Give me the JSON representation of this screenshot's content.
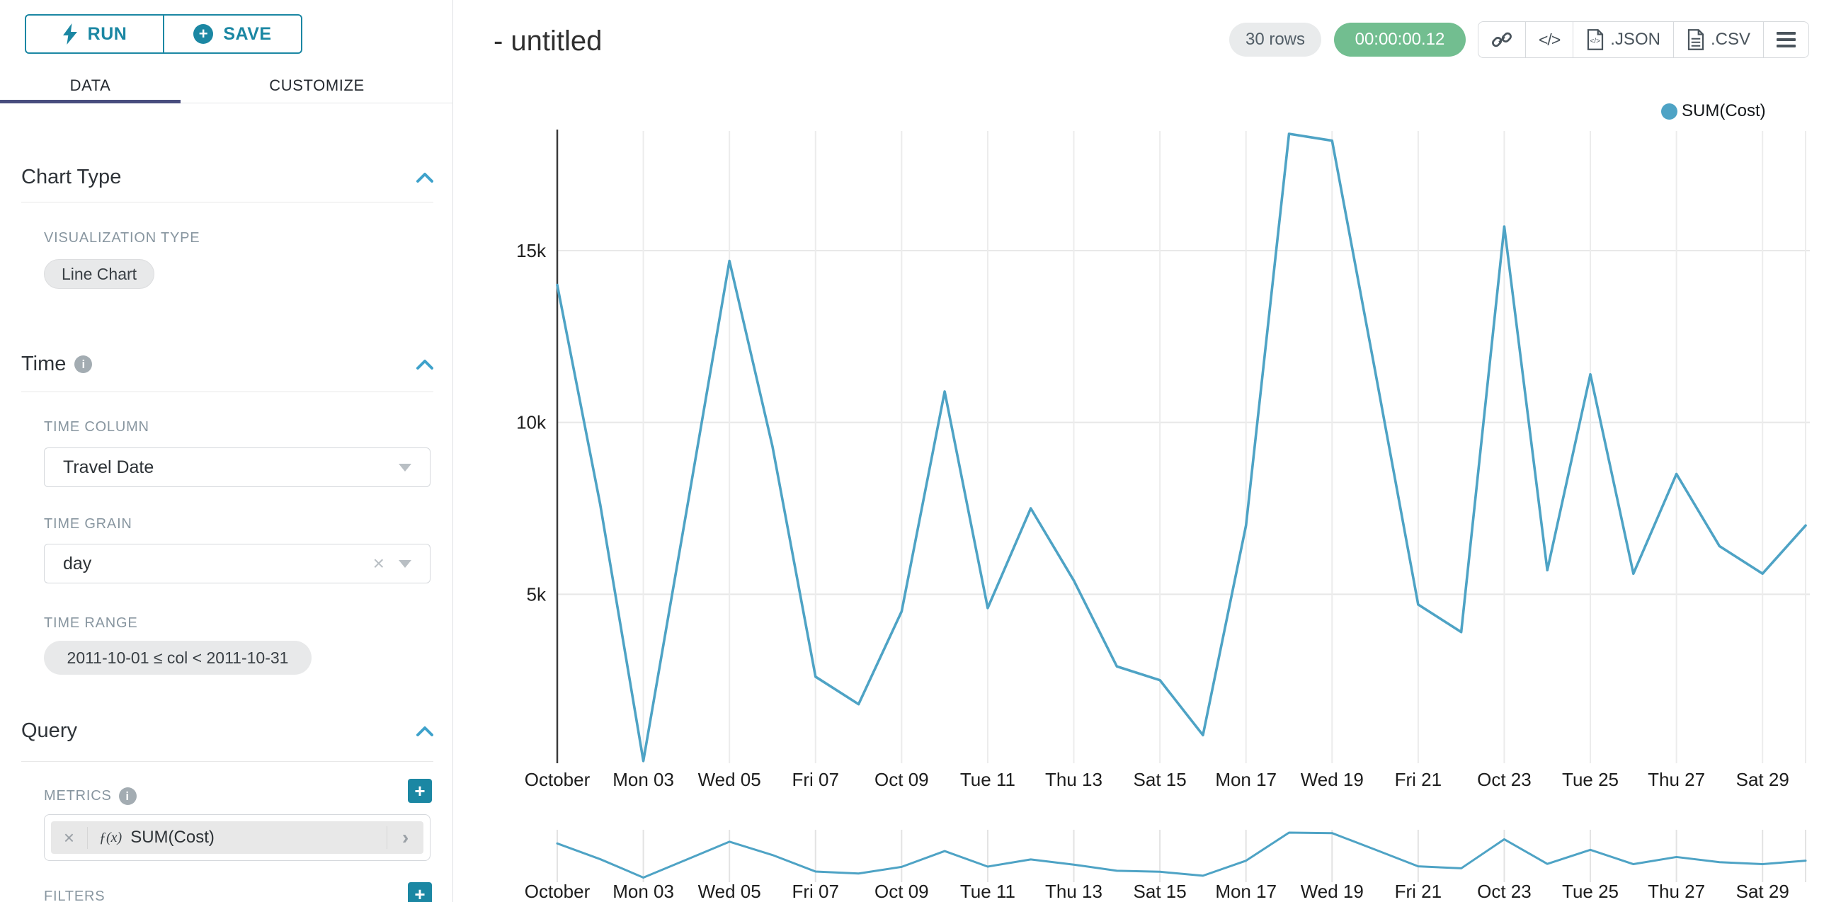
{
  "sidebar": {
    "run_label": "RUN",
    "save_label": "SAVE",
    "tabs": [
      {
        "label": "DATA"
      },
      {
        "label": "CUSTOMIZE"
      }
    ],
    "chart_type_section": {
      "title": "Chart Type",
      "viz_type_label": "VISUALIZATION TYPE",
      "viz_type_value": "Line Chart"
    },
    "time_section": {
      "title": "Time",
      "time_column_label": "TIME COLUMN",
      "time_column_value": "Travel Date",
      "time_grain_label": "TIME GRAIN",
      "time_grain_value": "day",
      "time_range_label": "TIME RANGE",
      "time_range_value": "2011-10-01 ≤ col < 2011-10-31"
    },
    "query_section": {
      "title": "Query",
      "metrics_label": "METRICS",
      "metric_fx": "ƒ(x)",
      "metric_value": "SUM(Cost)",
      "filters_label": "FILTERS"
    }
  },
  "header": {
    "title": "- untitled",
    "rows_badge": "30 rows",
    "timer_badge": "00:00:00.12",
    "json_label": ".JSON",
    "csv_label": ".CSV"
  },
  "legend": {
    "label": "SUM(Cost)"
  },
  "colors": {
    "accent_teal": "#1B87A3",
    "line": "#4EA3C5",
    "timer_green": "#72BE90",
    "tab_indicator": "#484D7E",
    "chevron_blue": "#3FA2CB"
  },
  "chart_data": {
    "type": "line",
    "title": "",
    "xlabel": "",
    "ylabel": "",
    "x": [
      "2011-10-01",
      "2011-10-02",
      "2011-10-03",
      "2011-10-04",
      "2011-10-05",
      "2011-10-06",
      "2011-10-07",
      "2011-10-08",
      "2011-10-09",
      "2011-10-10",
      "2011-10-11",
      "2011-10-12",
      "2011-10-13",
      "2011-10-14",
      "2011-10-15",
      "2011-10-16",
      "2011-10-17",
      "2011-10-18",
      "2011-10-19",
      "2011-10-20",
      "2011-10-21",
      "2011-10-22",
      "2011-10-23",
      "2011-10-24",
      "2011-10-25",
      "2011-10-26",
      "2011-10-27",
      "2011-10-28",
      "2011-10-29",
      "2011-10-30"
    ],
    "series": [
      {
        "name": "SUM(Cost)",
        "values": [
          14000,
          7600,
          150,
          7400,
          14700,
          9300,
          2600,
          1800,
          4500,
          10900,
          4600,
          7500,
          5400,
          2900,
          2500,
          900,
          7000,
          18400,
          18200,
          11500,
          4700,
          3900,
          15700,
          5700,
          11400,
          5600,
          8500,
          6400,
          5600,
          7000
        ]
      }
    ],
    "ylim": [
      0,
      18400
    ],
    "y_ticks": [
      {
        "value": 5000,
        "label": "5k"
      },
      {
        "value": 10000,
        "label": "10k"
      },
      {
        "value": 15000,
        "label": "15k"
      }
    ],
    "x_tick_positions": [
      0,
      2,
      4,
      6,
      8,
      10,
      12,
      14,
      16,
      18,
      20,
      22,
      24,
      26,
      28
    ],
    "x_tick_labels": [
      "October",
      "Mon 03",
      "Wed 05",
      "Fri 07",
      "Oct 09",
      "Tue 11",
      "Thu 13",
      "Sat 15",
      "Mon 17",
      "Wed 19",
      "Fri 21",
      "Oct 23",
      "Tue 25",
      "Thu 27",
      "Sat 29"
    ],
    "grid": true,
    "legend_position": "top-right",
    "line_color": "#4EA3C5",
    "has_mini_context_chart": true
  }
}
